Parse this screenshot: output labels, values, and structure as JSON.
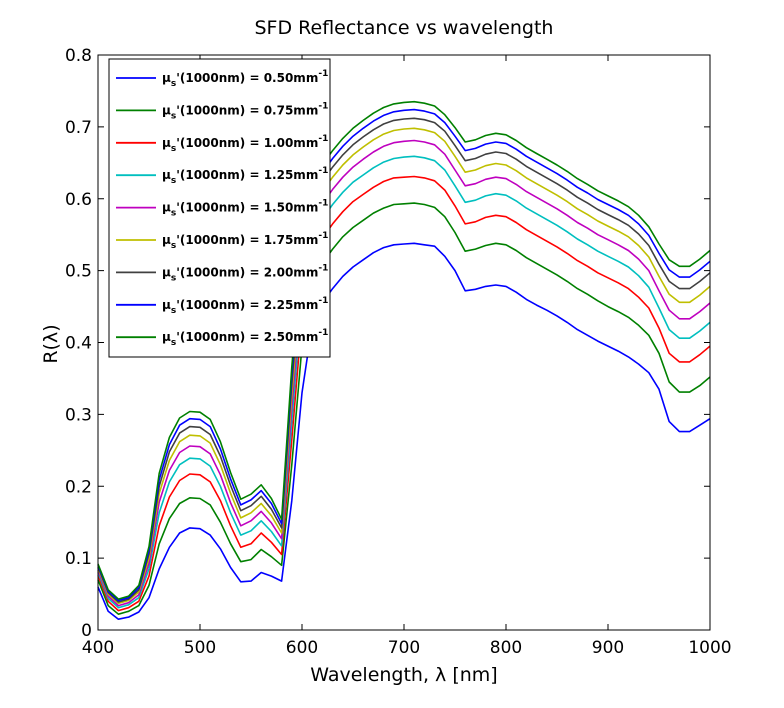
{
  "chart_data": {
    "type": "line",
    "title": "SFD Reflectance vs wavelength",
    "xlabel": "Wavelength, λ [nm]",
    "ylabel": "R(λ)",
    "xlim": [
      400,
      1000
    ],
    "ylim": [
      0,
      0.8
    ],
    "xticks": [
      "400",
      "500",
      "600",
      "700",
      "800",
      "900",
      "1000"
    ],
    "yticks": [
      "0",
      "0.1",
      "0.2",
      "0.3",
      "0.4",
      "0.5",
      "0.6",
      "0.7",
      "0.8"
    ],
    "grid": false,
    "legend_position": "top-left",
    "x": [
      400,
      410,
      420,
      430,
      440,
      450,
      460,
      470,
      480,
      490,
      500,
      510,
      520,
      530,
      540,
      550,
      560,
      570,
      580,
      590,
      600,
      610,
      620,
      630,
      640,
      650,
      660,
      670,
      680,
      690,
      700,
      710,
      720,
      730,
      740,
      750,
      760,
      770,
      780,
      790,
      800,
      810,
      820,
      830,
      840,
      850,
      860,
      870,
      880,
      890,
      900,
      910,
      920,
      930,
      940,
      950,
      960,
      970,
      980,
      990,
      1000
    ],
    "series": [
      {
        "name": "μs'(1000nm) = 0.50mm-1",
        "color": "#0000ff",
        "values": [
          0.06,
          0.026,
          0.015,
          0.018,
          0.025,
          0.045,
          0.085,
          0.115,
          0.135,
          0.142,
          0.141,
          0.132,
          0.113,
          0.087,
          0.067,
          0.068,
          0.08,
          0.075,
          0.068,
          0.18,
          0.33,
          0.425,
          0.455,
          0.475,
          0.492,
          0.505,
          0.515,
          0.525,
          0.532,
          0.536,
          0.537,
          0.538,
          0.536,
          0.534,
          0.52,
          0.5,
          0.472,
          0.474,
          0.478,
          0.48,
          0.478,
          0.47,
          0.46,
          0.452,
          0.445,
          0.437,
          0.428,
          0.418,
          0.41,
          0.402,
          0.395,
          0.388,
          0.38,
          0.37,
          0.358,
          0.335,
          0.29,
          0.276,
          0.276,
          0.285,
          0.294
        ]
      },
      {
        "name": "μs'(1000nm) = 0.75mm-1",
        "color": "#008000",
        "values": [
          0.07,
          0.034,
          0.022,
          0.026,
          0.034,
          0.062,
          0.12,
          0.155,
          0.176,
          0.184,
          0.183,
          0.174,
          0.15,
          0.12,
          0.095,
          0.098,
          0.112,
          0.102,
          0.09,
          0.23,
          0.395,
          0.48,
          0.51,
          0.53,
          0.547,
          0.56,
          0.57,
          0.58,
          0.587,
          0.592,
          0.593,
          0.594,
          0.592,
          0.588,
          0.575,
          0.553,
          0.527,
          0.53,
          0.535,
          0.538,
          0.536,
          0.528,
          0.518,
          0.51,
          0.502,
          0.494,
          0.485,
          0.475,
          0.467,
          0.458,
          0.45,
          0.443,
          0.435,
          0.424,
          0.41,
          0.385,
          0.345,
          0.331,
          0.331,
          0.34,
          0.352
        ]
      },
      {
        "name": "μs'(1000nm) = 1.00mm-1",
        "color": "#ff0000",
        "values": [
          0.076,
          0.04,
          0.027,
          0.031,
          0.04,
          0.075,
          0.145,
          0.185,
          0.208,
          0.217,
          0.216,
          0.206,
          0.18,
          0.145,
          0.115,
          0.12,
          0.135,
          0.122,
          0.105,
          0.265,
          0.435,
          0.515,
          0.545,
          0.565,
          0.582,
          0.596,
          0.606,
          0.616,
          0.624,
          0.629,
          0.63,
          0.631,
          0.629,
          0.625,
          0.612,
          0.59,
          0.565,
          0.568,
          0.574,
          0.577,
          0.575,
          0.567,
          0.557,
          0.549,
          0.541,
          0.533,
          0.524,
          0.514,
          0.506,
          0.497,
          0.49,
          0.483,
          0.475,
          0.463,
          0.448,
          0.42,
          0.385,
          0.373,
          0.373,
          0.383,
          0.395
        ]
      },
      {
        "name": "μs'(1000nm) = 1.25mm-1",
        "color": "#00bfbf",
        "values": [
          0.08,
          0.044,
          0.031,
          0.035,
          0.045,
          0.085,
          0.163,
          0.206,
          0.23,
          0.239,
          0.238,
          0.228,
          0.2,
          0.163,
          0.132,
          0.138,
          0.152,
          0.137,
          0.117,
          0.29,
          0.462,
          0.541,
          0.572,
          0.592,
          0.609,
          0.623,
          0.633,
          0.643,
          0.651,
          0.656,
          0.658,
          0.659,
          0.657,
          0.653,
          0.64,
          0.618,
          0.595,
          0.598,
          0.604,
          0.607,
          0.605,
          0.597,
          0.587,
          0.579,
          0.571,
          0.563,
          0.554,
          0.544,
          0.536,
          0.527,
          0.52,
          0.513,
          0.505,
          0.493,
          0.477,
          0.448,
          0.418,
          0.406,
          0.406,
          0.416,
          0.428
        ]
      },
      {
        "name": "μs'(1000nm) = 1.50mm-1",
        "color": "#bf00bf",
        "values": [
          0.083,
          0.047,
          0.034,
          0.038,
          0.049,
          0.093,
          0.178,
          0.222,
          0.247,
          0.256,
          0.255,
          0.245,
          0.216,
          0.177,
          0.145,
          0.152,
          0.165,
          0.149,
          0.127,
          0.31,
          0.483,
          0.563,
          0.593,
          0.613,
          0.63,
          0.644,
          0.655,
          0.665,
          0.673,
          0.678,
          0.68,
          0.681,
          0.679,
          0.675,
          0.662,
          0.64,
          0.618,
          0.621,
          0.627,
          0.63,
          0.628,
          0.62,
          0.61,
          0.602,
          0.594,
          0.586,
          0.577,
          0.567,
          0.559,
          0.55,
          0.543,
          0.536,
          0.528,
          0.516,
          0.5,
          0.472,
          0.445,
          0.433,
          0.433,
          0.443,
          0.455
        ]
      },
      {
        "name": "μs'(1000nm) = 1.75mm-1",
        "color": "#bfbf00",
        "values": [
          0.086,
          0.05,
          0.037,
          0.041,
          0.053,
          0.1,
          0.19,
          0.236,
          0.262,
          0.271,
          0.27,
          0.26,
          0.23,
          0.19,
          0.156,
          0.163,
          0.176,
          0.159,
          0.135,
          0.327,
          0.5,
          0.58,
          0.61,
          0.63,
          0.647,
          0.661,
          0.672,
          0.682,
          0.69,
          0.695,
          0.697,
          0.698,
          0.696,
          0.692,
          0.68,
          0.659,
          0.637,
          0.64,
          0.646,
          0.649,
          0.647,
          0.639,
          0.629,
          0.621,
          0.613,
          0.605,
          0.596,
          0.586,
          0.578,
          0.569,
          0.562,
          0.555,
          0.547,
          0.535,
          0.519,
          0.492,
          0.467,
          0.456,
          0.456,
          0.466,
          0.478
        ]
      },
      {
        "name": "μs'(1000nm) = 2.00mm-1",
        "color": "#404040",
        "values": [
          0.088,
          0.052,
          0.039,
          0.043,
          0.056,
          0.106,
          0.2,
          0.248,
          0.274,
          0.283,
          0.282,
          0.272,
          0.242,
          0.201,
          0.166,
          0.173,
          0.186,
          0.168,
          0.142,
          0.342,
          0.515,
          0.594,
          0.624,
          0.644,
          0.661,
          0.675,
          0.686,
          0.696,
          0.704,
          0.709,
          0.711,
          0.712,
          0.71,
          0.706,
          0.694,
          0.674,
          0.653,
          0.656,
          0.662,
          0.665,
          0.663,
          0.655,
          0.645,
          0.637,
          0.629,
          0.621,
          0.612,
          0.602,
          0.594,
          0.585,
          0.578,
          0.571,
          0.563,
          0.551,
          0.535,
          0.509,
          0.485,
          0.475,
          0.475,
          0.485,
          0.497
        ]
      },
      {
        "name": "μs'(1000nm) = 2.25mm-1",
        "color": "#0000ff",
        "values": [
          0.09,
          0.054,
          0.041,
          0.045,
          0.059,
          0.111,
          0.209,
          0.258,
          0.285,
          0.294,
          0.293,
          0.283,
          0.252,
          0.21,
          0.174,
          0.181,
          0.194,
          0.176,
          0.148,
          0.355,
          0.527,
          0.606,
          0.636,
          0.656,
          0.673,
          0.687,
          0.698,
          0.708,
          0.716,
          0.721,
          0.723,
          0.724,
          0.722,
          0.718,
          0.706,
          0.687,
          0.667,
          0.67,
          0.676,
          0.679,
          0.677,
          0.669,
          0.659,
          0.651,
          0.643,
          0.635,
          0.626,
          0.616,
          0.608,
          0.599,
          0.592,
          0.585,
          0.577,
          0.565,
          0.549,
          0.524,
          0.501,
          0.491,
          0.491,
          0.501,
          0.513
        ]
      },
      {
        "name": "μs'(1000nm) = 2.50mm-1",
        "color": "#008000",
        "values": [
          0.092,
          0.056,
          0.043,
          0.047,
          0.062,
          0.116,
          0.218,
          0.268,
          0.295,
          0.304,
          0.303,
          0.293,
          0.262,
          0.219,
          0.182,
          0.189,
          0.202,
          0.183,
          0.154,
          0.366,
          0.538,
          0.617,
          0.647,
          0.667,
          0.684,
          0.698,
          0.709,
          0.719,
          0.727,
          0.732,
          0.734,
          0.735,
          0.733,
          0.729,
          0.717,
          0.699,
          0.679,
          0.682,
          0.688,
          0.691,
          0.689,
          0.681,
          0.671,
          0.663,
          0.655,
          0.647,
          0.638,
          0.628,
          0.62,
          0.611,
          0.604,
          0.597,
          0.589,
          0.577,
          0.561,
          0.537,
          0.515,
          0.506,
          0.506,
          0.516,
          0.528
        ]
      }
    ]
  }
}
